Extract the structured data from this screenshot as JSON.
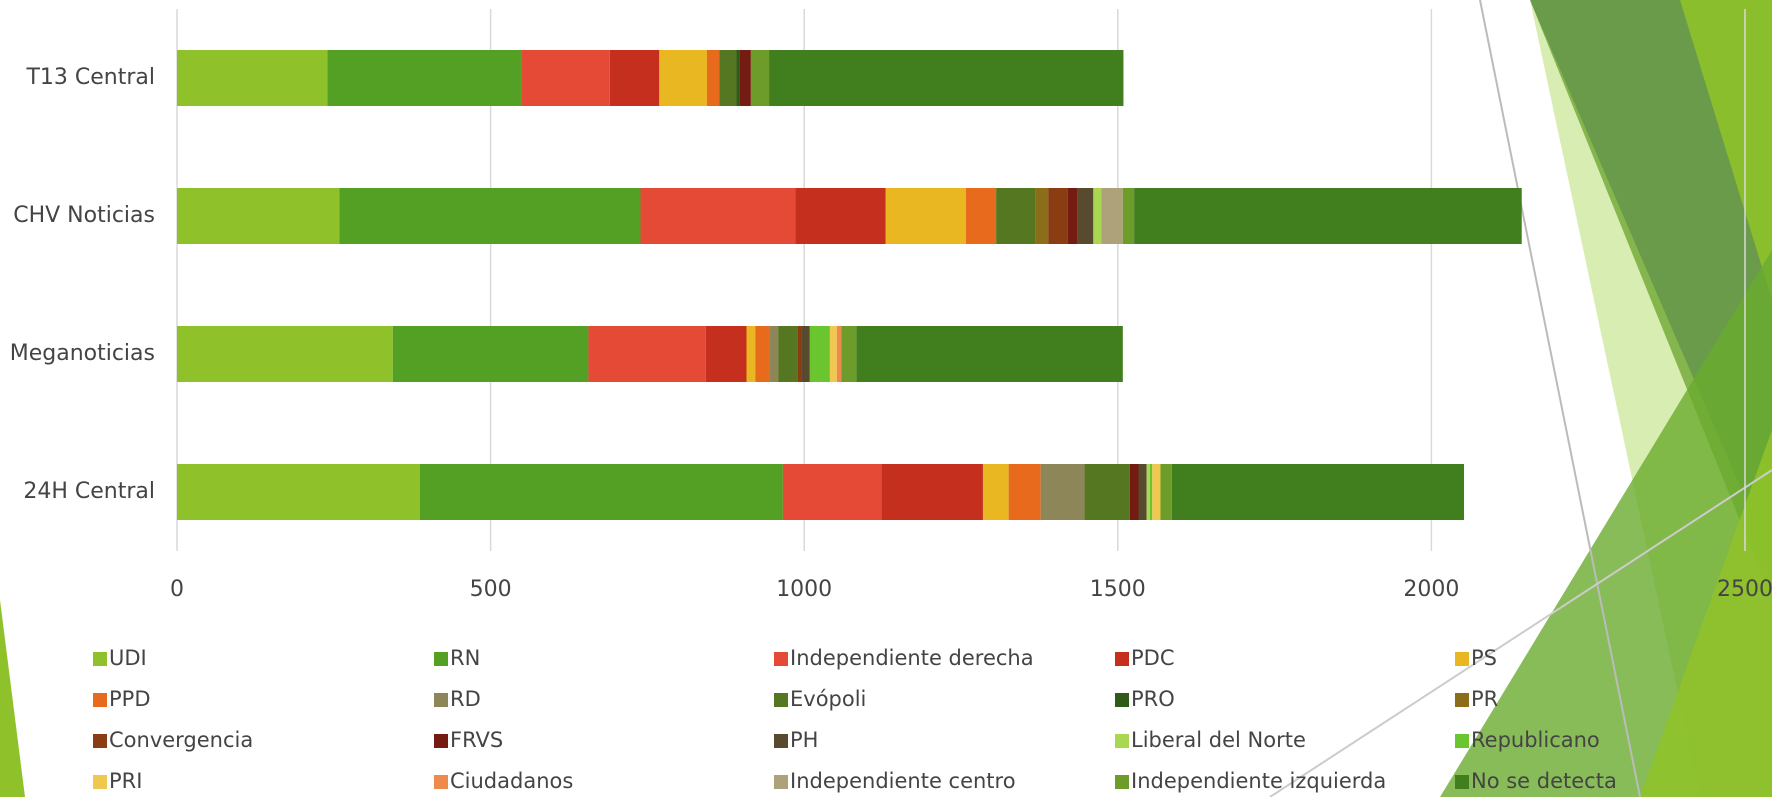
{
  "chart_data": {
    "type": "stacked_barh",
    "categories": [
      "T13 Central",
      "CHV Noticias",
      "Meganoticias",
      "24H Central"
    ],
    "series": [
      {
        "name": "UDI",
        "color": "#8fc22a",
        "values": [
          240,
          259,
          344,
          387
        ]
      },
      {
        "name": "RN",
        "color": "#53a024",
        "values": [
          310,
          480,
          312,
          579
        ]
      },
      {
        "name": "Independiente derecha",
        "color": "#e44a35",
        "values": [
          140,
          247,
          187,
          157
        ]
      },
      {
        "name": "PDC",
        "color": "#c4301d",
        "values": [
          79,
          144,
          65,
          162
        ]
      },
      {
        "name": "PS",
        "color": "#e8b722",
        "values": [
          76,
          128,
          14,
          41
        ]
      },
      {
        "name": "PPD",
        "color": "#e86a1c",
        "values": [
          20,
          48,
          22,
          51
        ]
      },
      {
        "name": "RD",
        "color": "#8c8658",
        "values": [
          0,
          0,
          15,
          70
        ]
      },
      {
        "name": "Evópoli",
        "color": "#567721",
        "values": [
          27,
          63,
          30,
          72
        ]
      },
      {
        "name": "PRO",
        "color": "#2f5a17",
        "values": [
          5,
          0,
          0,
          0
        ]
      },
      {
        "name": "PR",
        "color": "#8c6e1a",
        "values": [
          0,
          20,
          0,
          0
        ]
      },
      {
        "name": "Convergencia",
        "color": "#8a3d12",
        "values": [
          0,
          31,
          6,
          0
        ]
      },
      {
        "name": "FRVS",
        "color": "#751c12",
        "values": [
          18,
          16,
          0,
          14
        ]
      },
      {
        "name": "PH",
        "color": "#584a2e",
        "values": [
          0,
          25,
          14,
          13
        ]
      },
      {
        "name": "Liberal del Norte",
        "color": "#a9d752",
        "values": [
          0,
          13,
          0,
          5
        ]
      },
      {
        "name": "Republicano",
        "color": "#6ac52e",
        "values": [
          0,
          0,
          32,
          4
        ]
      },
      {
        "name": "PRI",
        "color": "#f0c850",
        "values": [
          0,
          0,
          11,
          13
        ]
      },
      {
        "name": "Ciudadanos",
        "color": "#ee8a4c",
        "values": [
          0,
          0,
          7,
          0
        ]
      },
      {
        "name": "Independiente centro",
        "color": "#ada27a",
        "values": [
          0,
          34,
          0,
          0
        ]
      },
      {
        "name": "Independiente izquierda",
        "color": "#6d9c2a",
        "values": [
          29,
          18,
          24,
          18
        ]
      },
      {
        "name": "No se detecta",
        "color": "#407e1e",
        "values": [
          565,
          618,
          425,
          466
        ]
      }
    ],
    "xlim": [
      0,
      2500
    ],
    "xticks": [
      0,
      500,
      1000,
      1500,
      2000,
      2500
    ],
    "grid": true
  }
}
